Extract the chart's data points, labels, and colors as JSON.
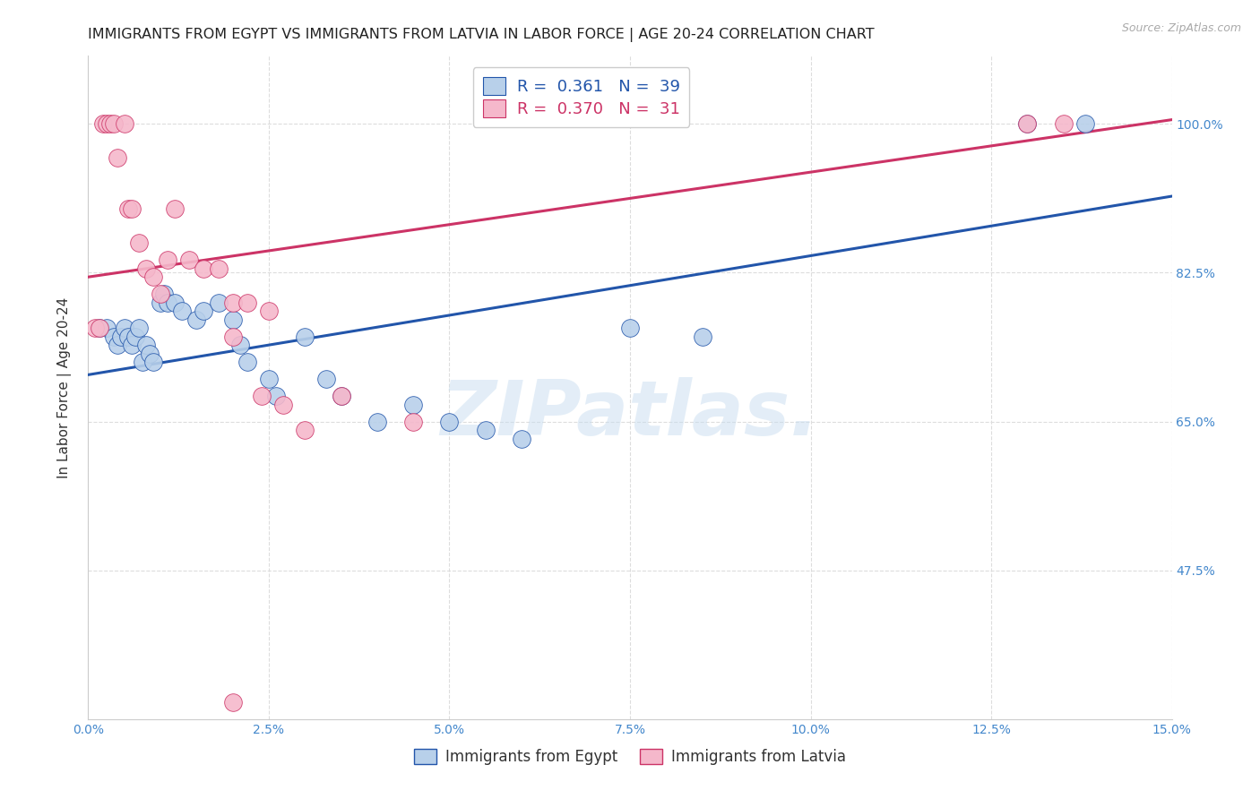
{
  "title": "IMMIGRANTS FROM EGYPT VS IMMIGRANTS FROM LATVIA IN LABOR FORCE | AGE 20-24 CORRELATION CHART",
  "source": "Source: ZipAtlas.com",
  "ylabel": "In Labor Force | Age 20-24",
  "xlim": [
    0.0,
    15.0
  ],
  "ylim": [
    30.0,
    108.0
  ],
  "xticks": [
    0.0,
    2.5,
    5.0,
    7.5,
    10.0,
    12.5,
    15.0
  ],
  "yticks": [
    47.5,
    65.0,
    82.5,
    100.0
  ],
  "xticklabels": [
    "0.0%",
    "2.5%",
    "5.0%",
    "7.5%",
    "10.0%",
    "12.5%",
    "15.0%"
  ],
  "yticklabels": [
    "47.5%",
    "65.0%",
    "82.5%",
    "100.0%"
  ],
  "egypt_color": "#b8d0ea",
  "latvia_color": "#f5b8cb",
  "egypt_line_color": "#2255aa",
  "latvia_line_color": "#cc3366",
  "legend_egypt_r": "0.361",
  "legend_egypt_n": "39",
  "legend_latvia_r": "0.370",
  "legend_latvia_n": "31",
  "egypt_scatter_x": [
    0.15,
    0.25,
    0.35,
    0.4,
    0.45,
    0.5,
    0.55,
    0.6,
    0.65,
    0.7,
    0.75,
    0.8,
    0.85,
    0.9,
    1.0,
    1.05,
    1.1,
    1.2,
    1.3,
    1.5,
    1.6,
    1.8,
    2.0,
    2.1,
    2.2,
    2.5,
    2.6,
    3.0,
    3.3,
    3.5,
    4.0,
    4.5,
    5.0,
    5.5,
    6.0,
    7.5,
    8.5,
    13.0,
    13.8
  ],
  "egypt_scatter_y": [
    76,
    76,
    75,
    74,
    75,
    76,
    75,
    74,
    75,
    76,
    72,
    74,
    73,
    72,
    79,
    80,
    79,
    79,
    78,
    77,
    78,
    79,
    77,
    74,
    72,
    70,
    68,
    75,
    70,
    68,
    65,
    67,
    65,
    64,
    63,
    76,
    75,
    100,
    100
  ],
  "latvia_scatter_x": [
    0.1,
    0.15,
    0.2,
    0.25,
    0.3,
    0.35,
    0.4,
    0.5,
    0.55,
    0.6,
    0.7,
    0.8,
    0.9,
    1.0,
    1.1,
    1.2,
    1.4,
    1.6,
    1.8,
    2.0,
    2.0,
    2.2,
    2.4,
    2.5,
    2.7,
    3.0,
    3.5,
    4.5,
    2.0,
    13.0,
    13.5
  ],
  "latvia_scatter_y": [
    76,
    76,
    100,
    100,
    100,
    100,
    96,
    100,
    90,
    90,
    86,
    83,
    82,
    80,
    84,
    90,
    84,
    83,
    83,
    79,
    75,
    79,
    68,
    78,
    67,
    64,
    68,
    65,
    32,
    100,
    100
  ],
  "egypt_trend_x": [
    0.0,
    15.0
  ],
  "egypt_trend_y": [
    70.5,
    91.5
  ],
  "latvia_trend_x": [
    0.0,
    15.0
  ],
  "latvia_trend_y": [
    82.0,
    100.5
  ],
  "watermark_text": "ZIPatlas.",
  "background_color": "#ffffff",
  "grid_color": "#dddddd",
  "tick_color": "#4488cc",
  "title_color": "#222222",
  "title_fontsize": 11.5,
  "source_fontsize": 9,
  "ylabel_fontsize": 11,
  "tick_fontsize": 10,
  "legend_fontsize": 13
}
